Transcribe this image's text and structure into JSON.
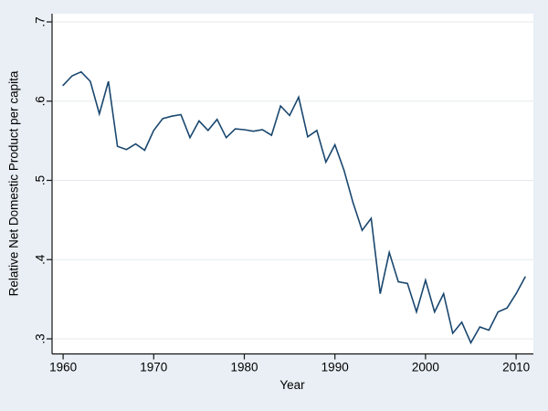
{
  "chart_data": {
    "type": "line",
    "title": "",
    "xlabel": "Year",
    "ylabel": "Relative Net Domestic Product per capita",
    "x": [
      1960,
      1961,
      1962,
      1963,
      1964,
      1965,
      1966,
      1967,
      1968,
      1969,
      1970,
      1971,
      1972,
      1973,
      1974,
      1975,
      1976,
      1977,
      1978,
      1979,
      1980,
      1981,
      1982,
      1983,
      1984,
      1985,
      1986,
      1987,
      1988,
      1989,
      1990,
      1991,
      1992,
      1993,
      1994,
      1995,
      1996,
      1997,
      1998,
      1999,
      2000,
      2001,
      2002,
      2003,
      2004,
      2005,
      2006,
      2007,
      2008,
      2009,
      2010,
      2011
    ],
    "values": [
      0.62,
      0.632,
      0.637,
      0.625,
      0.584,
      0.625,
      0.543,
      0.539,
      0.546,
      0.538,
      0.563,
      0.578,
      0.581,
      0.583,
      0.554,
      0.575,
      0.563,
      0.577,
      0.554,
      0.565,
      0.564,
      0.562,
      0.564,
      0.557,
      0.594,
      0.582,
      0.605,
      0.555,
      0.563,
      0.523,
      0.545,
      0.513,
      0.472,
      0.437,
      0.452,
      0.357,
      0.409,
      0.372,
      0.37,
      0.334,
      0.374,
      0.334,
      0.357,
      0.307,
      0.321,
      0.295,
      0.315,
      0.311,
      0.334,
      0.339,
      0.357,
      0.378
    ],
    "x_tick_labels": [
      "1960",
      "1970",
      "1980",
      "1990",
      "2000",
      "2010"
    ],
    "x_tick_values": [
      1960,
      1970,
      1980,
      1990,
      2000,
      2010
    ],
    "y_tick_labels": [
      ".3",
      ".4",
      ".5",
      ".6",
      ".7"
    ],
    "y_tick_values": [
      0.3,
      0.4,
      0.5,
      0.6,
      0.7
    ],
    "xlim": [
      1958.8,
      2011.9
    ],
    "ylim": [
      0.282,
      0.71
    ],
    "grid": true,
    "legend": false,
    "colors": {
      "figure_bg": "#e9eff5",
      "plot_bg": "#ffffff",
      "grid": "#e5eaee",
      "axis": "#141414",
      "line": "#1a476f",
      "text": "#000000"
    }
  }
}
